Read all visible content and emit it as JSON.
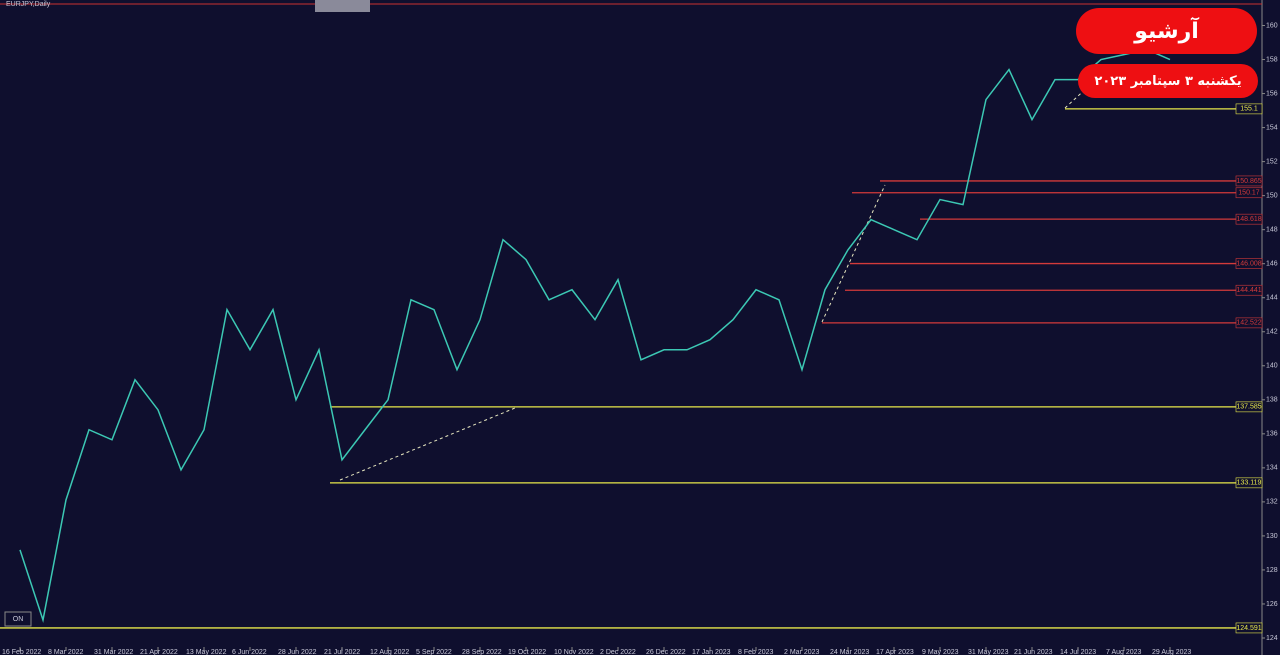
{
  "symbol": "EURJPY,Daily",
  "badge": {
    "title": "آرشیو",
    "date": "یکشنبه ۳ سپتامبر ۲۰۲۳"
  },
  "button": "ON",
  "chart_data": {
    "type": "line",
    "categories": [
      "16 Feb 2022",
      null,
      "8 Mar 2022",
      null,
      "31 Mar 2022",
      null,
      "21 Apr 2022",
      null,
      "13 May 2022",
      null,
      "6 Jun 2022",
      null,
      "28 Jun 2022",
      null,
      "21 Jul 2022",
      null,
      "12 Aug 2022",
      null,
      "5 Sep 2022",
      null,
      "28 Sep 2022",
      null,
      "19 Oct 2022",
      null,
      "10 Nov 2022",
      null,
      "2 Dec 2022",
      null,
      "26 Dec 2022",
      null,
      "17 Jan 2023",
      null,
      "8 Feb 2023",
      null,
      "2 Mar 2023",
      null,
      "24 Mar 2023",
      null,
      "17 Apr 2023",
      null,
      "9 May 2023",
      null,
      "31 May 2023",
      null,
      "21 Jun 2023",
      null,
      "14 Jul 2023",
      null,
      "7 Aug 2023",
      null,
      "29 Aug 2023"
    ],
    "series": [
      {
        "name": "EURJPY",
        "color": "#3cc8b4",
        "values": [
          129.18,
          125.06,
          132.12,
          136.24,
          135.65,
          139.18,
          137.41,
          133.88,
          136.24,
          143.3,
          140.94,
          143.3,
          138.0,
          140.94,
          134.47,
          136.24,
          138.0,
          143.88,
          143.3,
          139.77,
          142.71,
          147.41,
          146.24,
          143.88,
          144.47,
          142.71,
          145.06,
          140.35,
          140.94,
          140.94,
          141.53,
          142.71,
          144.47,
          143.88,
          139.77,
          144.47,
          146.82,
          148.59,
          148.0,
          147.41,
          149.77,
          149.47,
          155.65,
          157.41,
          154.47,
          156.82,
          156.82,
          158.0,
          158.29,
          158.59,
          158.0
        ]
      }
    ],
    "levels": [
      {
        "value": 124.591,
        "color": "#e8e84a"
      },
      {
        "value": 133.119,
        "color": "#e8e84a"
      },
      {
        "value": 137.585,
        "color": "#e8e84a"
      },
      {
        "value": 142.522,
        "color": "#d33a3a"
      },
      {
        "value": 144.441,
        "color": "#d33a3a"
      },
      {
        "value": 146.008,
        "color": "#d33a3a"
      },
      {
        "value": 148.618,
        "color": "#d33a3a"
      },
      {
        "value": 150.17,
        "color": "#d33a3a"
      },
      {
        "value": 150.865,
        "color": "#d33a3a"
      },
      {
        "value": 155.1,
        "color": "#e8e84a"
      }
    ],
    "ylim": [
      123.0,
      161.5
    ],
    "yticks": [
      124,
      126,
      128,
      130,
      132,
      134,
      136,
      138,
      140,
      142,
      144,
      146,
      148,
      150,
      152,
      154,
      156,
      158,
      160
    ],
    "grid": false
  }
}
